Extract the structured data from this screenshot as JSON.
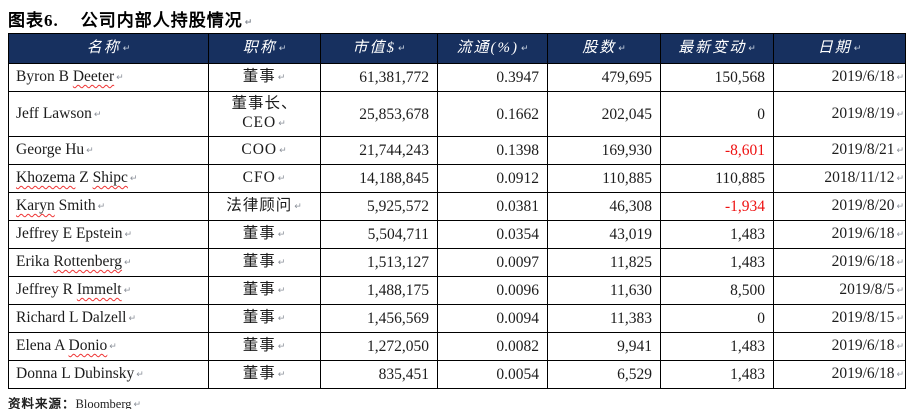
{
  "title": {
    "label": "图表6.",
    "text": "公司内部人持股情况"
  },
  "formatting_mark": "↵",
  "colors": {
    "header_bg": "#17305f",
    "negative": "#ee1111",
    "border": "#000000"
  },
  "table": {
    "headers": [
      "名称",
      "职称",
      "市值$",
      "流通(%)",
      "股数",
      "最新变动",
      "日期"
    ],
    "rows": [
      {
        "name": "Byron B Deeter",
        "misspelled": [
          "Deeter"
        ],
        "title": "董事",
        "market_value": "61,381,772",
        "float_pct": "0.3947",
        "shares": "479,695",
        "change": "150,568",
        "date": "2019/6/18"
      },
      {
        "name": "Jeff Lawson",
        "misspelled": [],
        "title": "董事长、CEO",
        "market_value": "25,853,678",
        "float_pct": "0.1662",
        "shares": "202,045",
        "change": "0",
        "date": "2019/8/19"
      },
      {
        "name": "George Hu",
        "misspelled": [],
        "title": "COO",
        "market_value": "21,744,243",
        "float_pct": "0.1398",
        "shares": "169,930",
        "change": "-8,601",
        "date": "2019/8/21"
      },
      {
        "name": "Khozema Z Shipc",
        "misspelled": [
          "Khozema",
          "Shipc"
        ],
        "title": "CFO",
        "market_value": "14,188,845",
        "float_pct": "0.0912",
        "shares": "110,885",
        "change": "110,885",
        "date": "2018/11/12"
      },
      {
        "name": "Karyn Smith",
        "misspelled": [
          "Karyn"
        ],
        "title": "法律顾问",
        "market_value": "5,925,572",
        "float_pct": "0.0381",
        "shares": "46,308",
        "change": "-1,934",
        "date": "2019/8/20"
      },
      {
        "name": "Jeffrey E Epstein",
        "misspelled": [],
        "title": "董事",
        "market_value": "5,504,711",
        "float_pct": "0.0354",
        "shares": "43,019",
        "change": "1,483",
        "date": "2019/6/18"
      },
      {
        "name": "Erika Rottenberg",
        "misspelled": [
          "Rottenberg"
        ],
        "title": "董事",
        "market_value": "1,513,127",
        "float_pct": "0.0097",
        "shares": "11,825",
        "change": "1,483",
        "date": "2019/6/18"
      },
      {
        "name": "Jeffrey R Immelt",
        "misspelled": [
          "Immelt"
        ],
        "title": "董事",
        "market_value": "1,488,175",
        "float_pct": "0.0096",
        "shares": "11,630",
        "change": "8,500",
        "date": "2019/8/5"
      },
      {
        "name": "Richard L Dalzell",
        "misspelled": [],
        "title": "董事",
        "market_value": "1,456,569",
        "float_pct": "0.0094",
        "shares": "11,383",
        "change": "0",
        "date": "2019/8/15"
      },
      {
        "name": "Elena A Donio",
        "misspelled": [
          "Donio"
        ],
        "title": "董事",
        "market_value": "1,272,050",
        "float_pct": "0.0082",
        "shares": "9,941",
        "change": "1,483",
        "date": "2019/6/18"
      },
      {
        "name": "Donna L Dubinsky",
        "misspelled": [],
        "title": "董事",
        "market_value": "835,451",
        "float_pct": "0.0054",
        "shares": "6,529",
        "change": "1,483",
        "date": "2019/6/18"
      }
    ]
  },
  "footer": {
    "source_label": "资料来源：",
    "source_value": "Bloomberg"
  }
}
